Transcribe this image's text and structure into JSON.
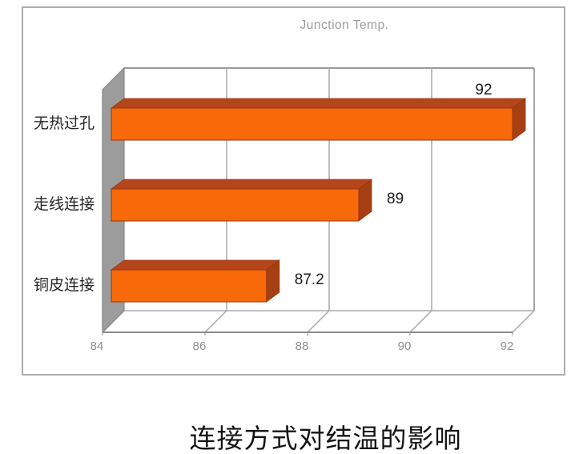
{
  "page": {
    "background": "#ffffff"
  },
  "chart_data": {
    "type": "bar",
    "orientation": "horizontal",
    "style": "3d-excel",
    "title": "Junction Temp.",
    "categories": [
      "无热过孔",
      "走线连接",
      "铜皮连接"
    ],
    "values": [
      92,
      89,
      87.2
    ],
    "value_labels": [
      "92",
      "89",
      "87.2"
    ],
    "xlim": [
      84,
      92
    ],
    "x_ticks": [
      84,
      86,
      88,
      90,
      92
    ],
    "xlabel": "",
    "ylabel": "",
    "grid": true,
    "legend": false,
    "colors": {
      "bar_front": "#F8690A",
      "bar_top": "#B5461B",
      "bar_side": "#A63F12",
      "bar_edge": "#93380F",
      "wall": "#9C9C9C",
      "wall_edge": "#868686",
      "gridline": "#A9A9A9",
      "frame": "#9A9A9A",
      "axis_line": "#8C8C8C",
      "tick_text": "#8F8F8F",
      "title_text": "#9B9B9B",
      "category_text": "#262626",
      "value_text": "#1C1C1C",
      "panel_border": "#AEAEAE"
    }
  },
  "caption": "连接方式对结温的影响"
}
